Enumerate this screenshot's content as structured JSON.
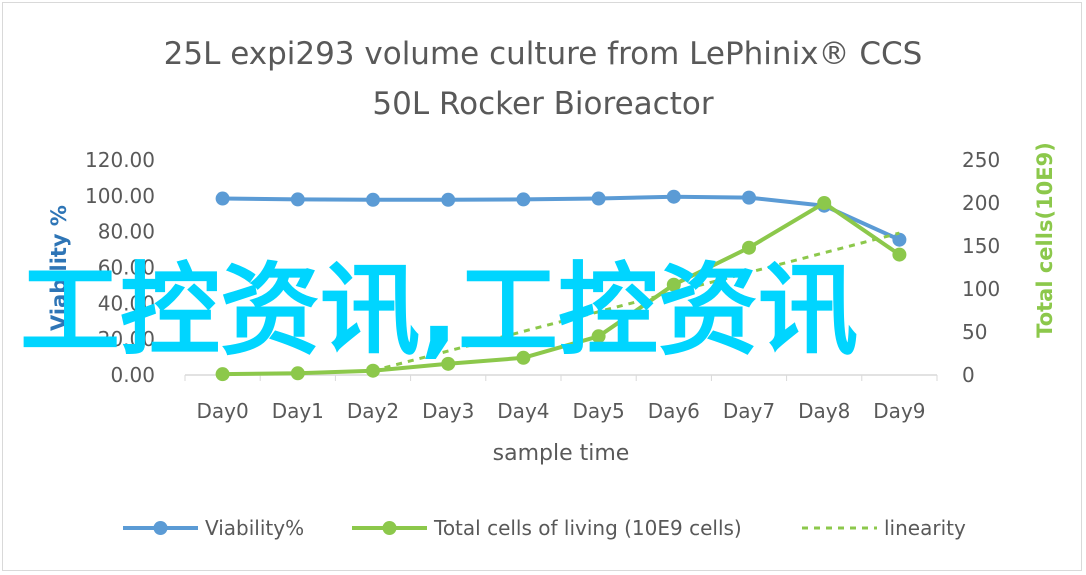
{
  "chart_data": {
    "type": "line",
    "title": [
      "25L  expi293 volume culture  from LePhinix® CCS",
      "50L Rocker Bioreactor"
    ],
    "xlabel": "sample  time",
    "ylabel_left": "Viability %",
    "ylabel_right": "Total cells(10E9)",
    "categories": [
      "Day0",
      "Day1",
      "Day2",
      "Day3",
      "Day4",
      "Day5",
      "Day6",
      "Day7",
      "Day8",
      "Day9"
    ],
    "ylim_left": [
      0,
      120
    ],
    "yticks_left": [
      "0.00",
      "20.00",
      "40.00",
      "60.00",
      "80.00",
      "100.00",
      "120.00"
    ],
    "ylim_right": [
      0,
      250
    ],
    "yticks_right": [
      "0",
      "50",
      "100",
      "150",
      "200",
      "250"
    ],
    "series": [
      {
        "name": "Viability%",
        "axis": "left",
        "color": "#5b9bd5",
        "marker": "circle",
        "values": [
          98.5,
          98,
          97.8,
          97.8,
          98,
          98.5,
          99.5,
          99,
          94.5,
          75.5
        ]
      },
      {
        "name": "Total cells of living (10E9 cells)",
        "axis": "right",
        "color": "#8cc84b",
        "marker": "circle",
        "values": [
          1,
          2,
          5,
          13,
          20,
          45,
          105,
          148,
          200,
          140
        ]
      },
      {
        "name": "linearity",
        "axis": "right",
        "color": "#8cc84b",
        "style": "dashed",
        "values": [
          null,
          null,
          5,
          null,
          null,
          null,
          null,
          null,
          null,
          165
        ]
      }
    ],
    "legend_position": "bottom",
    "grid": false,
    "watermark": "工控资讯,工控资讯"
  }
}
